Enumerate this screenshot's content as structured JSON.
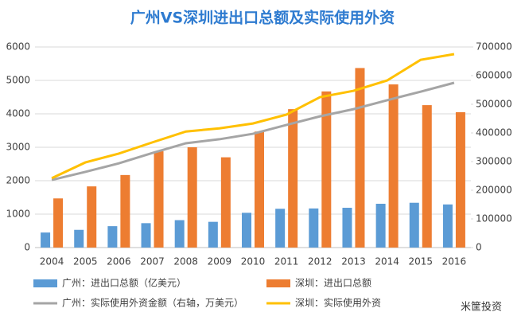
{
  "chart_data": {
    "type": "bar_line",
    "title": "广州VS深圳进出口总额及实际使用外资",
    "categories": [
      "2004",
      "2005",
      "2006",
      "2007",
      "2008",
      "2009",
      "2010",
      "2011",
      "2012",
      "2013",
      "2014",
      "2015",
      "2016"
    ],
    "series": [
      {
        "name": "广州：进出口总额（亿美元）",
        "color": "#5b9bd5",
        "kind": "bar",
        "values": [
          450,
          530,
          640,
          730,
          820,
          770,
          1040,
          1160,
          1170,
          1190,
          1310,
          1340,
          1290
        ]
      },
      {
        "name": "深圳：进出口总额",
        "color": "#ed7d31",
        "kind": "bar",
        "values": [
          1470,
          1830,
          2170,
          2880,
          3000,
          2700,
          3470,
          4140,
          4670,
          5370,
          4880,
          4260,
          4050
        ]
      },
      {
        "name": "广州：实际使用外资金额（右轴，万美元）",
        "color": "#a5a5a5",
        "kind": "line",
        "axis": "y2",
        "values": [
          236000,
          264000,
          294000,
          330000,
          364000,
          378000,
          397000,
          428000,
          458000,
          483000,
          514000,
          544000,
          575000
        ]
      },
      {
        "name": "深圳：实际使用外资",
        "color": "#ffc000",
        "kind": "line",
        "axis": "y2",
        "values": [
          242000,
          297000,
          328000,
          367000,
          405000,
          416000,
          433000,
          464000,
          525000,
          547000,
          583000,
          655000,
          675000
        ]
      }
    ],
    "ylim": [
      0,
      6000
    ],
    "yticks": [
      0,
      1000,
      2000,
      3000,
      4000,
      5000,
      6000
    ],
    "y2lim": [
      0,
      700000
    ],
    "y2ticks": [
      0,
      100000,
      200000,
      300000,
      400000,
      500000,
      600000,
      700000
    ],
    "grid": true,
    "source_logo": "米筐投资"
  }
}
